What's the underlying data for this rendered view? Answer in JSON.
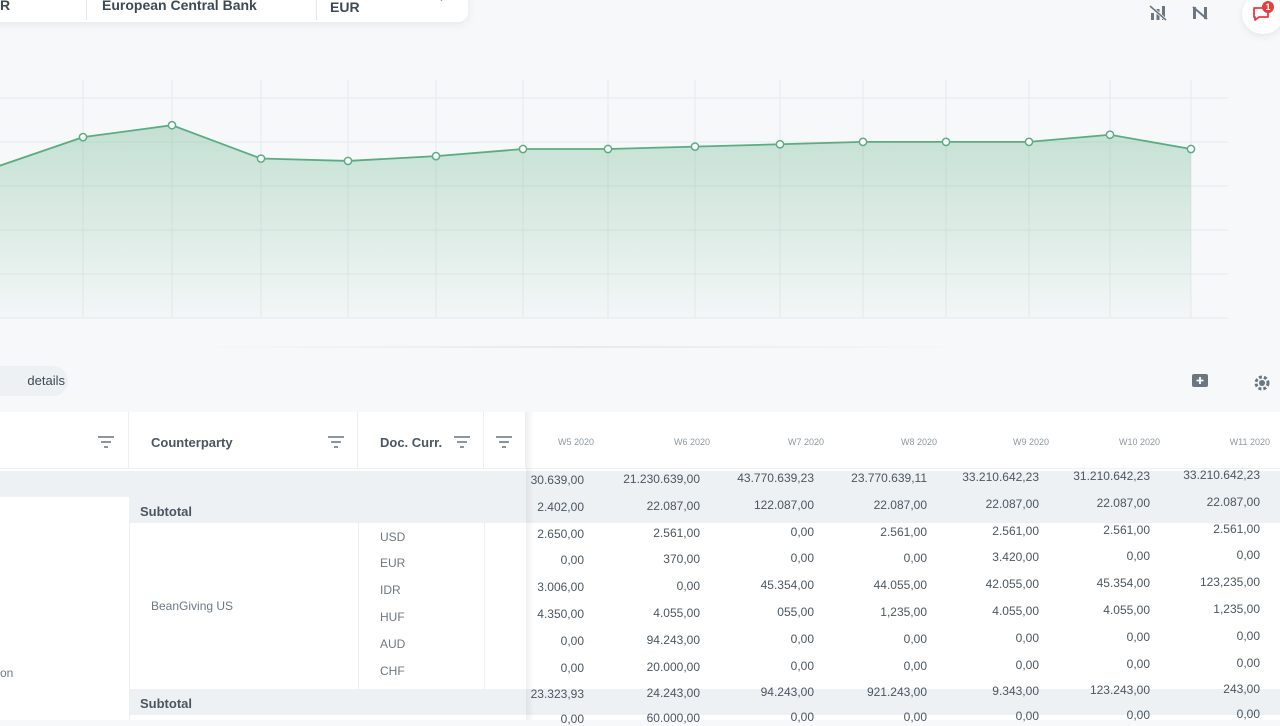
{
  "filters": {
    "partial": "R",
    "bank": "European Central Bank",
    "currency": "EUR"
  },
  "toolbar": {
    "icons": [
      "chart-hidden-icon",
      "data-hidden-icon",
      "chat-icon"
    ],
    "notification_count": "1"
  },
  "chart_data": {
    "type": "area",
    "x": [
      "",
      "",
      "",
      "",
      "",
      "",
      "",
      "",
      "",
      "",
      "",
      "",
      "",
      ""
    ],
    "series": [
      {
        "values": [
          76,
          81,
          67,
          66,
          68,
          71,
          71,
          72,
          73,
          74,
          74,
          74,
          77,
          71
        ]
      }
    ],
    "ylim": [
      0,
      100
    ],
    "grid": true,
    "color": "#5aad80"
  },
  "table": {
    "details_label": "details",
    "columns": {
      "counterparty": "Counterparty",
      "doc_curr": "Doc. Curr."
    },
    "weeks": [
      "W5 2020",
      "W6 2020",
      "W7 2020",
      "W8 2020",
      "W9 2020",
      "W10 2020",
      "W11 2020"
    ],
    "subtotal_label": "Subtotal",
    "counterparty_name": "BeanGiving US",
    "partial_left_label": "on",
    "rows": [
      {
        "values": [
          "30.639,00",
          "21.230.639,00",
          "43.770.639,23",
          "23.770.639,11",
          "33.210.642,23",
          "31.210.642,23",
          "33.210.642,23"
        ]
      },
      {
        "values": [
          "2.402,00",
          "22.087,00",
          "122.087,00",
          "22.087,00",
          "22.087,00",
          "22.087,00",
          "22.087,00"
        ]
      },
      {
        "currency": "USD",
        "values": [
          "2.650,00",
          "2.561,00",
          "0,00",
          "2.561,00",
          "2.561,00",
          "2.561,00",
          "2.561,00"
        ]
      },
      {
        "currency": "EUR",
        "values": [
          "0,00",
          "370,00",
          "0,00",
          "0,00",
          "3.420,00",
          "0,00",
          "0,00"
        ]
      },
      {
        "currency": "IDR",
        "values": [
          "3.006,00",
          "0,00",
          "45.354,00",
          "44.055,00",
          "42.055,00",
          "45.354,00",
          "123,235,00"
        ]
      },
      {
        "currency": "HUF",
        "values": [
          "4.350,00",
          "4.055,00",
          "055,00",
          "1,235,00",
          "4.055,00",
          "4.055,00",
          "1,235,00"
        ]
      },
      {
        "currency": "AUD",
        "values": [
          "0,00",
          "94.243,00",
          "0,00",
          "0,00",
          "0,00",
          "0,00",
          "0,00"
        ]
      },
      {
        "currency": "CHF",
        "values": [
          "0,00",
          "20.000,00",
          "0,00",
          "0,00",
          "0,00",
          "0,00",
          "0,00"
        ]
      },
      {
        "values": [
          "23.323,93",
          "24.243,00",
          "94.243,00",
          "921.243,00",
          "9.343,00",
          "123.243,00",
          "243,00"
        ]
      },
      {
        "values": [
          "0,00",
          "60.000,00",
          "0,00",
          "0,00",
          "0,00",
          "0,00",
          "0,00"
        ]
      }
    ]
  }
}
